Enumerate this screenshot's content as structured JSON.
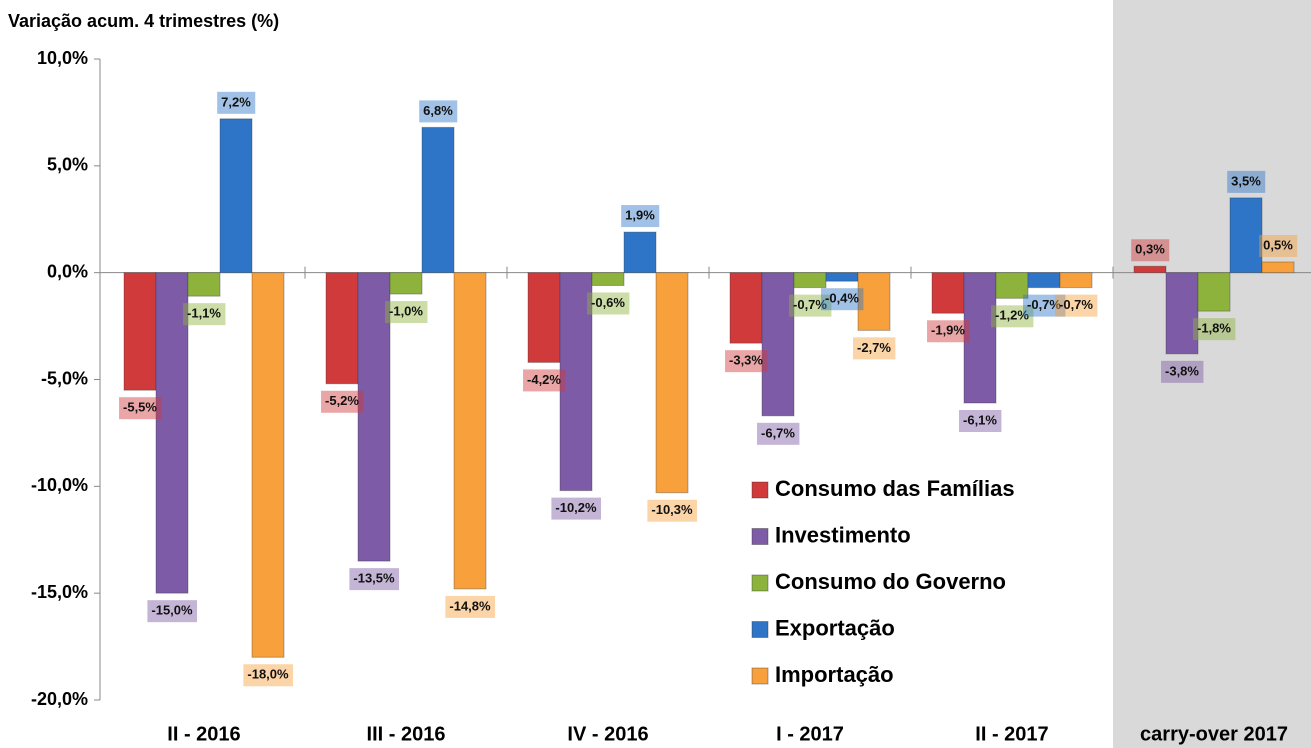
{
  "chart_data": {
    "type": "bar",
    "ylabel": "Variação acum. 4 trimestres (%)",
    "categories": [
      "II - 2016",
      "III - 2016",
      "IV - 2016",
      "I - 2017",
      "II - 2017",
      "carry-over 2017"
    ],
    "series": [
      {
        "name": "Consumo das Famílias",
        "color": "#d03a3a",
        "values": [
          -5.5,
          -5.2,
          -4.2,
          -3.3,
          -1.9,
          0.3
        ],
        "value_labels": [
          "-5,5%",
          "-5,2%",
          "-4,2%",
          "-3,3%",
          "-1,9%",
          "0,3%"
        ]
      },
      {
        "name": "Investimento",
        "color": "#7d5ba6",
        "values": [
          -15.0,
          -13.5,
          -10.2,
          -6.7,
          -6.1,
          -3.8
        ],
        "value_labels": [
          "-15,0%",
          "-13,5%",
          "-10,2%",
          "-6,7%",
          "-6,1%",
          "-3,8%"
        ]
      },
      {
        "name": "Consumo do Governo",
        "color": "#8db33c",
        "values": [
          -1.1,
          -1.0,
          -0.6,
          -0.7,
          -1.2,
          -1.8
        ],
        "value_labels": [
          "-1,1%",
          "-1,0%",
          "-0,6%",
          "-0,7%",
          "-1,2%",
          "-1,8%"
        ]
      },
      {
        "name": "Exportação",
        "color": "#2e75c7",
        "values": [
          7.2,
          6.8,
          1.9,
          -0.4,
          -0.7,
          3.5
        ],
        "value_labels": [
          "7,2%",
          "6,8%",
          "1,9%",
          "-0,4%",
          "-0,7%",
          "3,5%"
        ]
      },
      {
        "name": "Importação",
        "color": "#f7a03c",
        "values": [
          -18.0,
          -14.8,
          -10.3,
          -2.7,
          -0.7,
          0.5
        ],
        "value_labels": [
          "-18,0%",
          "-14,8%",
          "-10,3%",
          "-2,7%",
          "-0,7%",
          "0,5%"
        ]
      }
    ],
    "ylim": [
      -20,
      10
    ],
    "yticks": [
      {
        "value": -20,
        "label": "-20,0%"
      },
      {
        "value": -15,
        "label": "-15,0%"
      },
      {
        "value": -10,
        "label": "-10,0%"
      },
      {
        "value": -5,
        "label": "-5,0%"
      },
      {
        "value": 0,
        "label": "0,0%"
      },
      {
        "value": 5,
        "label": "5,0%"
      },
      {
        "value": 10,
        "label": "10,0%"
      }
    ],
    "grid": false
  }
}
